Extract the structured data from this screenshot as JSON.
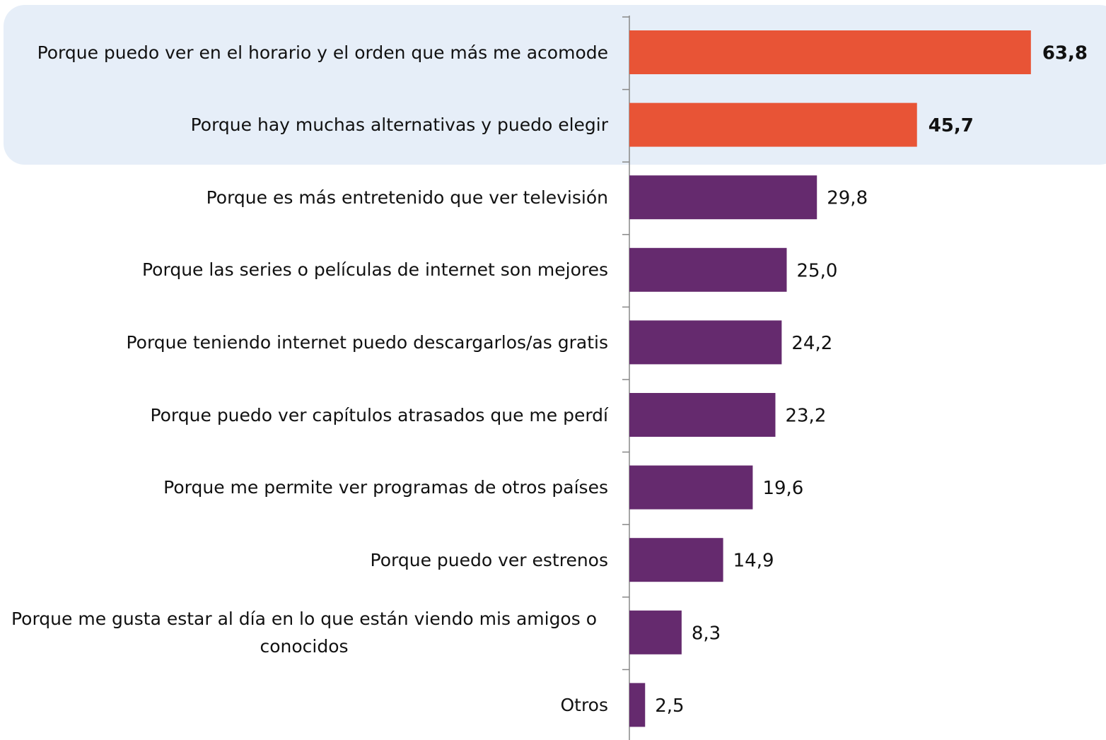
{
  "chart_data": {
    "type": "bar",
    "orientation": "horizontal",
    "categories": [
      "Porque puedo ver en el horario y el orden que más me acomode",
      "Porque hay muchas alternativas y puedo elegir",
      "Porque es más entretenido que ver televisión",
      "Porque las series o películas de internet son mejores",
      "Porque teniendo internet puedo descargarlos/as gratis",
      "Porque puedo ver capítulos atrasados que me perdí",
      "Porque me permite ver programas de otros países",
      "Porque puedo ver estrenos",
      "Porque me gusta estar al día en lo que están viendo mis amigos o conocidos",
      "Otros"
    ],
    "values": [
      63.8,
      45.7,
      29.8,
      25.0,
      24.2,
      23.2,
      19.6,
      14.9,
      8.3,
      2.5
    ],
    "value_labels": [
      "63,8",
      "45,7",
      "29,8",
      "25,0",
      "24,2",
      "23,2",
      "19,6",
      "14,9",
      "8,3",
      "2,5"
    ],
    "colors": [
      "#e85436",
      "#e85436",
      "#652a6e",
      "#652a6e",
      "#652a6e",
      "#652a6e",
      "#652a6e",
      "#652a6e",
      "#652a6e",
      "#652a6e"
    ],
    "xlim": [
      0,
      70
    ]
  }
}
